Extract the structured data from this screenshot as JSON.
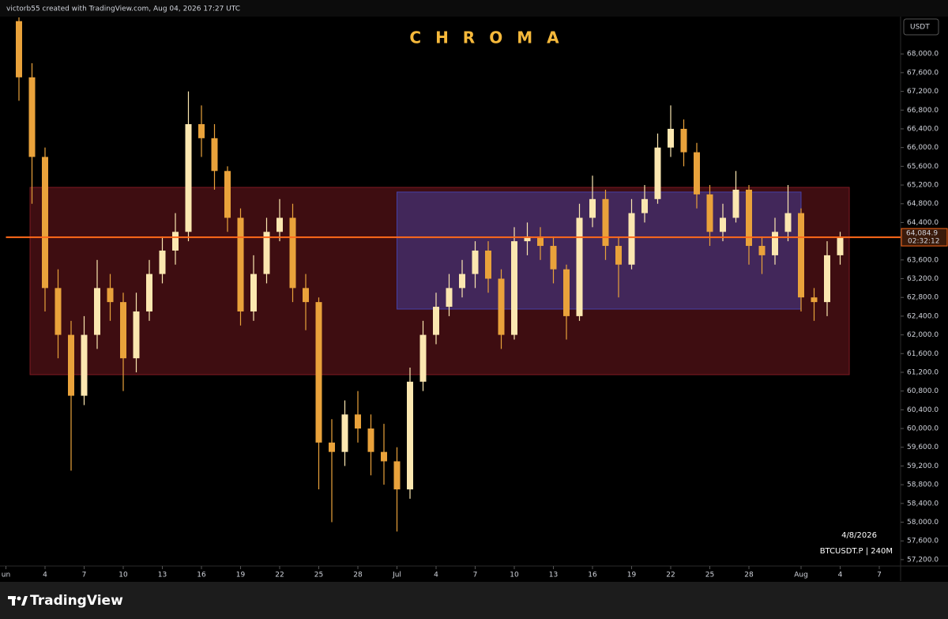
{
  "header": {
    "text": "victorb55 created with TradingView.com, Aug 04, 2026 17:27 UTC"
  },
  "footer": {
    "brand": "TradingView"
  },
  "chart_data": {
    "type": "candlestick",
    "title": "CHROMA",
    "currency": "USDT",
    "date_label": "4/8/2026",
    "symbol_label": "BTCUSDT.P | 240M",
    "countdown": "02:32:12",
    "last_price": {
      "value": 64084.9,
      "label": "64,084.9"
    },
    "up_color": "#fbe7b0",
    "down_color": "#e9a23b",
    "line_color": "#ff6a1a",
    "xlim": [
      1,
      69.6
    ],
    "xticks": [
      {
        "value": 1,
        "label": "un"
      },
      4,
      7,
      10,
      13,
      16,
      19,
      22,
      25,
      28,
      {
        "value": 31,
        "label": "Jul"
      },
      {
        "value": 34,
        "label": "4"
      },
      {
        "value": 37,
        "label": "7"
      },
      {
        "value": 40,
        "label": "10"
      },
      {
        "value": 43,
        "label": "13"
      },
      {
        "value": 46,
        "label": "16"
      },
      {
        "value": 49,
        "label": "19"
      },
      {
        "value": 52,
        "label": "22"
      },
      {
        "value": 55,
        "label": "25"
      },
      {
        "value": 58,
        "label": "28"
      },
      {
        "value": 62,
        "label": "Aug"
      },
      {
        "value": 65,
        "label": "4"
      },
      {
        "value": 68,
        "label": "7"
      }
    ],
    "ylim": [
      57080,
      68780
    ],
    "yticks": [
      {
        "value": 57200,
        "label": "57,200.0"
      },
      {
        "value": 57600,
        "label": "57,600.0"
      },
      {
        "value": 58000,
        "label": "58,000.0"
      },
      {
        "value": 58400,
        "label": "58,400.0"
      },
      {
        "value": 58800,
        "label": "58,800.0"
      },
      {
        "value": 59200,
        "label": "59,200.0"
      },
      {
        "value": 59600,
        "label": "59,600.0"
      },
      {
        "value": 60000,
        "label": "60,000.0"
      },
      {
        "value": 60400,
        "label": "60,400.0"
      },
      {
        "value": 60800,
        "label": "60,800.0"
      },
      {
        "value": 61200,
        "label": "61,200.0"
      },
      {
        "value": 61600,
        "label": "61,600.0"
      },
      {
        "value": 62000,
        "label": "62,000.0"
      },
      {
        "value": 62400,
        "label": "62,400.0"
      },
      {
        "value": 62800,
        "label": "62,800.0"
      },
      {
        "value": 63200,
        "label": "63,200.0"
      },
      {
        "value": 63600,
        "label": "63,600.0"
      },
      {
        "value": 64400,
        "label": "64,400.0"
      },
      {
        "value": 64800,
        "label": "64,800.0"
      },
      {
        "value": 65200,
        "label": "65,200.0"
      },
      {
        "value": 65600,
        "label": "65,600.0"
      },
      {
        "value": 66000,
        "label": "66,000.0"
      },
      {
        "value": 66400,
        "label": "66,400.0"
      },
      {
        "value": 66800,
        "label": "66,800.0"
      },
      {
        "value": 67200,
        "label": "67,200.0"
      },
      {
        "value": 67600,
        "label": "67,600.0"
      },
      {
        "value": 68000,
        "label": "68,000.0"
      }
    ],
    "zones": [
      {
        "from_x": 2.85,
        "to_x": 65.7,
        "from_y": 61150,
        "to_y": 65150,
        "color": "#8a1c26"
      },
      {
        "from_x": 31,
        "to_x": 62,
        "from_y": 62550,
        "to_y": 65050,
        "color": "#4646b4"
      }
    ],
    "candles": {
      "x": [
        2,
        3,
        4,
        5,
        6,
        7,
        8,
        9,
        10,
        11,
        12,
        13,
        14,
        15,
        16,
        17,
        18,
        19,
        20,
        21,
        22,
        23,
        24,
        25,
        26,
        27,
        28,
        29,
        30,
        31,
        32,
        33,
        34,
        35,
        36,
        37,
        38,
        39,
        40,
        41,
        42,
        43,
        44,
        45,
        46,
        47,
        48,
        49,
        50,
        51,
        52,
        53,
        54,
        55,
        56,
        57,
        58,
        59,
        60,
        61,
        62,
        63,
        64,
        65
      ],
      "open": [
        68700,
        67500,
        65800,
        63000,
        62000,
        60700,
        62000,
        63000,
        62700,
        61500,
        62500,
        63300,
        63800,
        64200,
        66500,
        66200,
        65500,
        64500,
        62500,
        63300,
        64200,
        64500,
        63000,
        62700,
        59700,
        59500,
        60300,
        60000,
        59500,
        59300,
        58700,
        61000,
        62000,
        62600,
        63000,
        63300,
        63800,
        63200,
        62000,
        64000,
        64100,
        63900,
        63400,
        62400,
        64500,
        64900,
        63900,
        63500,
        64600,
        64900,
        66000,
        66400,
        65900,
        65000,
        64200,
        64500,
        65100,
        63900,
        63700,
        64200,
        64600,
        62800,
        62700,
        63700
      ],
      "high": [
        68780,
        67800,
        66000,
        63400,
        62300,
        62400,
        63600,
        63300,
        62900,
        62900,
        63600,
        64100,
        64600,
        67200,
        66900,
        66500,
        65600,
        64700,
        63700,
        64500,
        64900,
        64800,
        63300,
        62800,
        60200,
        60600,
        60800,
        60300,
        60100,
        59600,
        61300,
        62300,
        62900,
        63300,
        63600,
        64000,
        64000,
        63400,
        64300,
        64400,
        64300,
        64100,
        63500,
        64800,
        65400,
        65100,
        64100,
        64900,
        65200,
        66300,
        66900,
        66600,
        66100,
        65200,
        64800,
        65500,
        65200,
        64100,
        64500,
        65200,
        64700,
        63000,
        64000,
        64200
      ],
      "low": [
        67000,
        64800,
        62500,
        61500,
        59100,
        60500,
        61700,
        62300,
        60800,
        61200,
        62300,
        63100,
        63500,
        64000,
        65800,
        65100,
        64200,
        62200,
        62300,
        63100,
        64000,
        62700,
        62100,
        58700,
        58000,
        59200,
        59700,
        59000,
        58800,
        57800,
        58500,
        60800,
        61800,
        62400,
        62800,
        63000,
        62900,
        61700,
        61900,
        63700,
        63600,
        63100,
        61900,
        62300,
        64300,
        63600,
        62800,
        63400,
        64400,
        64800,
        65800,
        65600,
        64700,
        63900,
        64000,
        64400,
        63500,
        63300,
        63500,
        64000,
        62500,
        62300,
        62400,
        63500
      ],
      "close": [
        67500,
        65800,
        63000,
        62000,
        60700,
        62000,
        63000,
        62700,
        61500,
        62500,
        63300,
        63800,
        64200,
        66500,
        66200,
        65500,
        64500,
        62500,
        63300,
        64200,
        64500,
        63000,
        62700,
        59700,
        59500,
        60300,
        60000,
        59500,
        59300,
        58700,
        61000,
        62000,
        62600,
        63000,
        63300,
        63800,
        63200,
        62000,
        64000,
        64100,
        63900,
        63400,
        62400,
        64500,
        64900,
        63900,
        63500,
        64600,
        64900,
        66000,
        66400,
        65900,
        65000,
        64200,
        64500,
        65100,
        63900,
        63700,
        64200,
        64600,
        62800,
        62700,
        63700,
        64084.9
      ]
    }
  }
}
